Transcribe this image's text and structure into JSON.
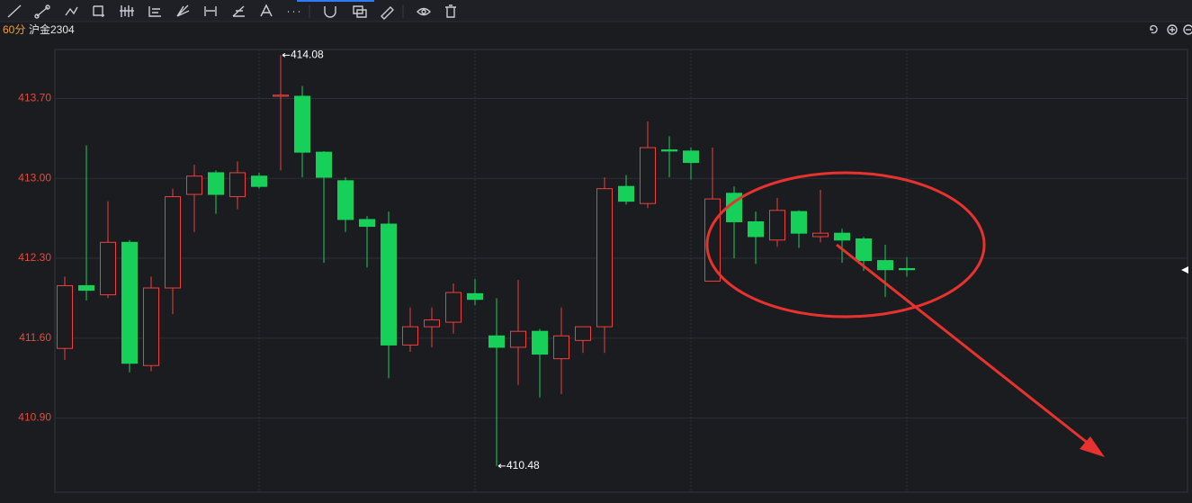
{
  "chart_data": {
    "type": "candlestick",
    "title": "沪金2304",
    "subtitle": "60分",
    "open": [
      411.51,
      412.06,
      411.98,
      412.44,
      411.36,
      412.04,
      412.86,
      413.05,
      412.84,
      413.02,
      413.72,
      413.72,
      413.23,
      412.98,
      412.64,
      412.6,
      411.54,
      411.7,
      411.74,
      411.99,
      411.62,
      411.52,
      411.66,
      411.42,
      411.58,
      411.7,
      412.93,
      412.78,
      413.25,
      413.24,
      412.1,
      412.87,
      412.62,
      412.46,
      412.71,
      412.49,
      412.52,
      412.47,
      412.28,
      412.21
    ],
    "high": [
      412.14,
      413.29,
      412.8,
      412.46,
      412.14,
      412.91,
      413.12,
      413.07,
      413.15,
      413.05,
      414.08,
      413.81,
      413.24,
      413.01,
      412.67,
      412.71,
      411.87,
      411.87,
      412.08,
      412.12,
      411.95,
      412.11,
      411.68,
      411.87,
      411.7,
      413.01,
      413.03,
      413.5,
      413.37,
      413.27,
      413.27,
      412.93,
      412.71,
      412.83,
      412.72,
      412.9,
      412.56,
      412.49,
      412.42,
      412.31
    ],
    "low": [
      411.41,
      411.93,
      411.95,
      411.3,
      411.31,
      411.81,
      412.53,
      412.69,
      412.73,
      412.91,
      413.07,
      413.01,
      412.26,
      412.53,
      412.22,
      411.25,
      411.48,
      411.52,
      411.64,
      411.89,
      410.48,
      411.19,
      411.08,
      411.11,
      411.47,
      411.47,
      412.77,
      412.74,
      413.01,
      412.99,
      412.1,
      412.3,
      412.25,
      412.4,
      412.39,
      412.44,
      412.26,
      412.19,
      411.96,
      412.14
    ],
    "close": [
      412.06,
      412.02,
      412.44,
      411.38,
      412.04,
      412.84,
      413.02,
      412.86,
      413.05,
      412.93,
      413.73,
      413.23,
      413.01,
      412.64,
      412.58,
      411.54,
      411.7,
      411.76,
      412.0,
      411.94,
      411.52,
      411.66,
      411.46,
      411.62,
      411.7,
      412.91,
      412.8,
      413.27,
      413.24,
      413.14,
      412.82,
      412.62,
      412.49,
      412.72,
      412.52,
      412.52,
      412.46,
      412.28,
      412.2,
      412.2
    ],
    "up_color": "#ef3f3f",
    "down_color": "#16d05a",
    "ylim": [
      410.25,
      414.13
    ],
    "yticks": [
      {
        "value": 410.9,
        "label": "410.90"
      },
      {
        "value": 411.6,
        "label": "411.60"
      },
      {
        "value": 412.3,
        "label": "412.30"
      },
      {
        "value": 413.0,
        "label": "413.00"
      },
      {
        "value": 413.7,
        "label": "413.70"
      }
    ],
    "grid": true
  }
}
